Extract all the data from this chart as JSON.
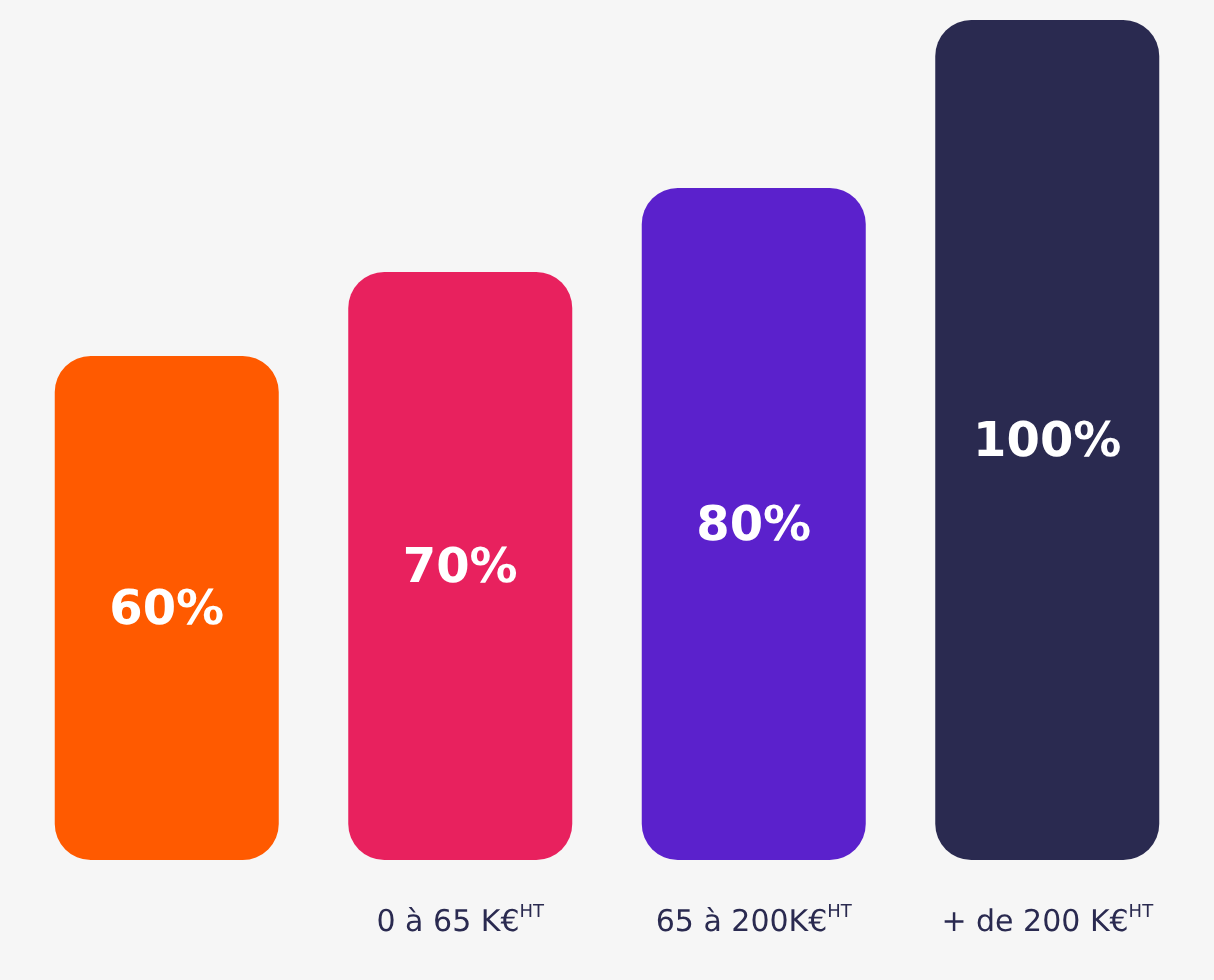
{
  "chart_data": {
    "type": "bar",
    "categories": [
      null,
      "0 à 65 K€$^{HT}$",
      "65 à 200K€$^{HT}$",
      "+ de 200 K€$^{HT}$"
    ],
    "values": [
      60,
      70,
      80,
      100
    ],
    "colors": [
      "#ff5a00",
      "#e8215e",
      "#5b21cc",
      "#2a2a50"
    ],
    "value_labels": [
      "60%",
      "70%",
      "80%",
      "100%"
    ]
  }
}
